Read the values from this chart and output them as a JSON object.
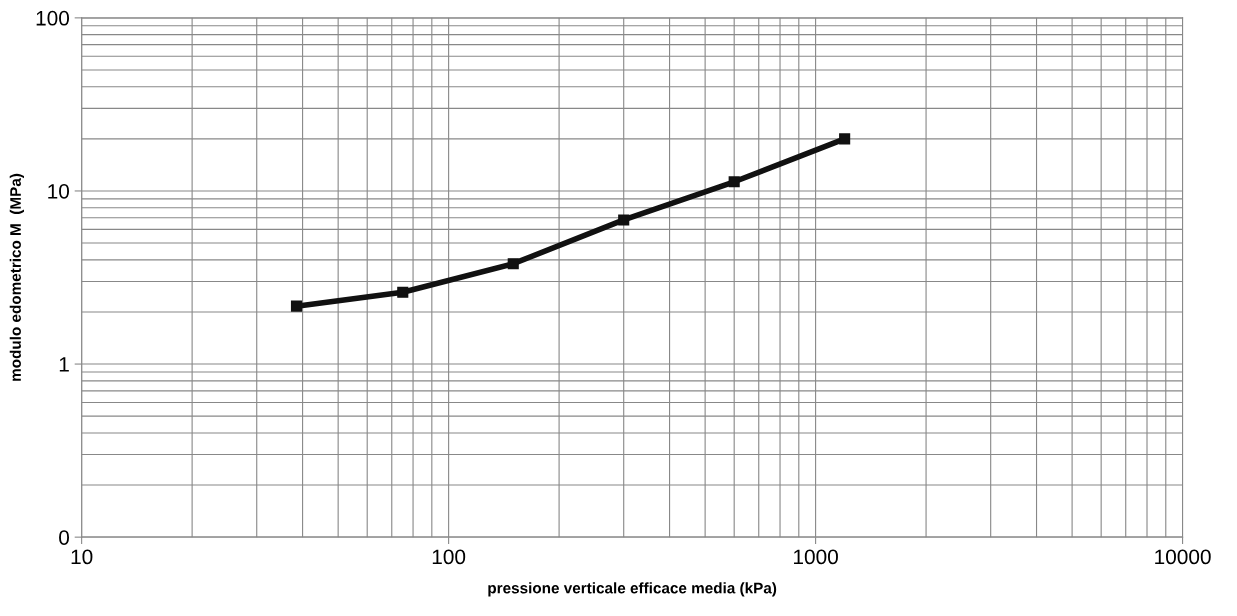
{
  "chart_data": {
    "type": "line",
    "xlabel": "pressione verticale efficace media (kPa)",
    "ylabel": "modulo edometrico M  (MPa)",
    "x": [
      38.5,
      75,
      150,
      300,
      600,
      1200
    ],
    "series": [
      {
        "color": "#111111",
        "values": [
          2.16,
          2.6,
          3.8,
          6.8,
          11.3,
          20
        ]
      }
    ],
    "log": "xy",
    "xlim": [
      10,
      10000
    ],
    "xticks": [
      10,
      100,
      1000,
      10000
    ],
    "ylim": [
      0.1,
      100
    ],
    "yticks": [
      {
        "value": 0.1,
        "label": "0"
      },
      1,
      10,
      100
    ],
    "grid": true,
    "marker": "square",
    "line_style": "solid"
  }
}
